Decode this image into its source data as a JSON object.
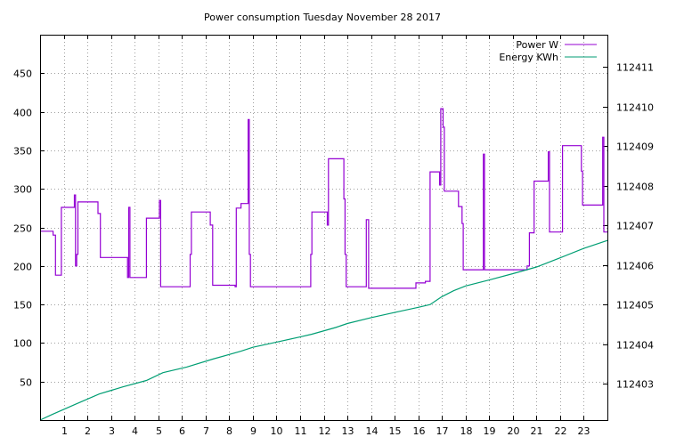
{
  "chart_data": {
    "type": "line",
    "title": "Power consumption Tuesday November 28 2017",
    "xlabel": "",
    "ylabel": "",
    "grid": true,
    "legend_position": "top-right",
    "x_range": [
      0,
      24
    ],
    "x_ticks": [
      1,
      2,
      3,
      4,
      5,
      6,
      7,
      8,
      9,
      10,
      11,
      12,
      13,
      14,
      15,
      16,
      17,
      18,
      19,
      20,
      21,
      22,
      23
    ],
    "y_left": {
      "range": [
        0,
        500
      ],
      "ticks": [
        50,
        100,
        150,
        200,
        250,
        300,
        350,
        400,
        450
      ]
    },
    "y_right": {
      "range": [
        112402.08,
        112411.82
      ],
      "ticks": [
        112403,
        112404,
        112405,
        112406,
        112407,
        112408,
        112409,
        112410,
        112411
      ]
    },
    "colors": {
      "power": "#9400d3",
      "energy": "#009e73"
    },
    "series": [
      {
        "name": "Power W",
        "axis": "left",
        "interpolation": "step",
        "points": [
          [
            0,
            245
          ],
          [
            0.55,
            240
          ],
          [
            0.65,
            188
          ],
          [
            0.9,
            276
          ],
          [
            1.45,
            292
          ],
          [
            1.5,
            200
          ],
          [
            1.55,
            215
          ],
          [
            1.6,
            283
          ],
          [
            2.45,
            268
          ],
          [
            2.55,
            211
          ],
          [
            3.7,
            185
          ],
          [
            3.75,
            276
          ],
          [
            3.8,
            185
          ],
          [
            4.5,
            262
          ],
          [
            5.05,
            285
          ],
          [
            5.1,
            173
          ],
          [
            6.35,
            215
          ],
          [
            6.4,
            270
          ],
          [
            7.2,
            253
          ],
          [
            7.3,
            175
          ],
          [
            8.25,
            173
          ],
          [
            8.3,
            275
          ],
          [
            8.5,
            281
          ],
          [
            8.8,
            390
          ],
          [
            8.85,
            215
          ],
          [
            8.9,
            173
          ],
          [
            11.45,
            215
          ],
          [
            11.5,
            270
          ],
          [
            12.15,
            253
          ],
          [
            12.2,
            339
          ],
          [
            12.85,
            287
          ],
          [
            12.9,
            215
          ],
          [
            12.95,
            173
          ],
          [
            13.8,
            260
          ],
          [
            13.9,
            171
          ],
          [
            15.9,
            178
          ],
          [
            16.3,
            180
          ],
          [
            16.5,
            322
          ],
          [
            16.9,
            305
          ],
          [
            16.95,
            404
          ],
          [
            17.05,
            380
          ],
          [
            17.1,
            297
          ],
          [
            17.7,
            277
          ],
          [
            17.85,
            255
          ],
          [
            17.9,
            195
          ],
          [
            18.75,
            345
          ],
          [
            18.8,
            195
          ],
          [
            20.6,
            200
          ],
          [
            20.7,
            243
          ],
          [
            20.9,
            310
          ],
          [
            21.5,
            348
          ],
          [
            21.55,
            244
          ],
          [
            22.1,
            356
          ],
          [
            22.9,
            323
          ],
          [
            22.95,
            279
          ],
          [
            23.8,
            367
          ],
          [
            23.85,
            244
          ],
          [
            24,
            244
          ]
        ]
      },
      {
        "name": "Energy KWh",
        "axis": "right",
        "interpolation": "linear",
        "points": [
          [
            0,
            112402.08
          ],
          [
            0.5,
            112402.22
          ],
          [
            1.5,
            112402.48
          ],
          [
            2.5,
            112402.74
          ],
          [
            3.5,
            112402.92
          ],
          [
            4.5,
            112403.08
          ],
          [
            5.2,
            112403.28
          ],
          [
            6.2,
            112403.42
          ],
          [
            7.3,
            112403.62
          ],
          [
            8.5,
            112403.82
          ],
          [
            9,
            112403.92
          ],
          [
            10,
            112404.05
          ],
          [
            11,
            112404.18
          ],
          [
            11.5,
            112404.25
          ],
          [
            12.5,
            112404.42
          ],
          [
            13,
            112404.52
          ],
          [
            14,
            112404.67
          ],
          [
            15,
            112404.8
          ],
          [
            16,
            112404.93
          ],
          [
            16.5,
            112405.0
          ],
          [
            17,
            112405.2
          ],
          [
            17.5,
            112405.35
          ],
          [
            18,
            112405.47
          ],
          [
            19,
            112405.62
          ],
          [
            20,
            112405.78
          ],
          [
            21,
            112405.95
          ],
          [
            22,
            112406.18
          ],
          [
            23,
            112406.42
          ],
          [
            24,
            112406.62
          ]
        ]
      }
    ]
  }
}
